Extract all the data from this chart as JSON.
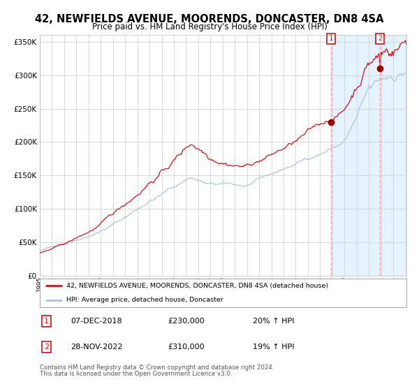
{
  "title": "42, NEWFIELDS AVENUE, MOORENDS, DONCASTER, DN8 4SA",
  "subtitle": "Price paid vs. HM Land Registry's House Price Index (HPI)",
  "title_fontsize": 10.5,
  "subtitle_fontsize": 8.5,
  "background_color": "#ffffff",
  "plot_bg_color": "#ffffff",
  "grid_color": "#cccccc",
  "hpi_line_color": "#aac4e0",
  "price_line_color": "#cc1111",
  "highlight_bg_color": "#ddeeff",
  "dashed_line_color": "#ff9999",
  "marker_color": "#990000",
  "sale1_idx": 287,
  "sale1_value": 230000,
  "sale1_date": "07-DEC-2018",
  "sale1_pct": "20% ↑ HPI",
  "sale2_idx": 335,
  "sale2_value": 310000,
  "sale2_date": "28-NOV-2022",
  "sale2_pct": "19% ↑ HPI",
  "ylim": [
    0,
    360000
  ],
  "yticks": [
    0,
    50000,
    100000,
    150000,
    200000,
    250000,
    300000,
    350000
  ],
  "n_months": 362,
  "start_year": 1995,
  "legend_label1": "42, NEWFIELDS AVENUE, MOORENDS, DONCASTER, DN8 4SA (detached house)",
  "legend_label2": "HPI: Average price, detached house, Doncaster",
  "footnote_line1": "Contains HM Land Registry data © Crown copyright and database right 2024.",
  "footnote_line2": "This data is licensed under the Open Government Licence v3.0."
}
